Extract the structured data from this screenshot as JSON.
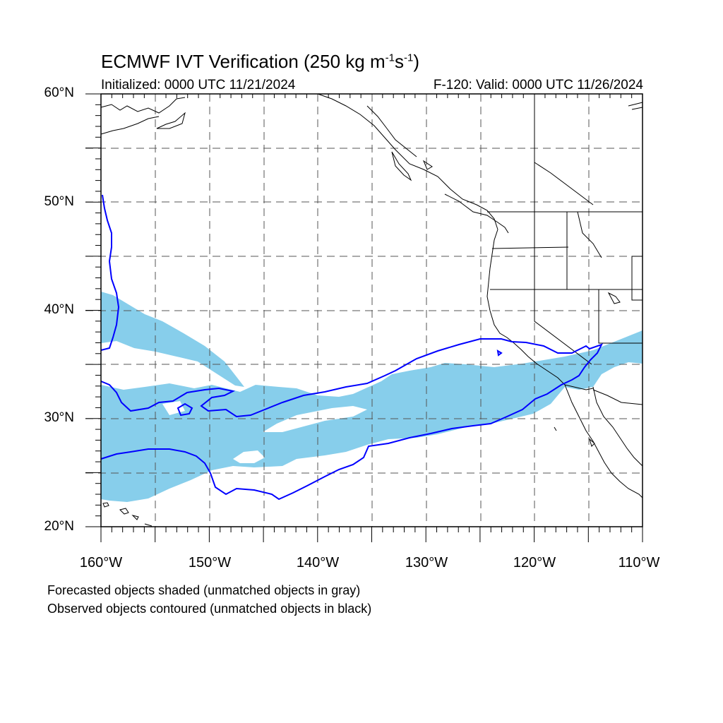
{
  "title": {
    "main": "ECMWF IVT Verification (250 kg m",
    "exp1": "-1",
    "mid": "s",
    "exp2": "-1",
    "end": ")"
  },
  "subtitle": {
    "initialized": "Initialized: 0000 UTC 11/21/2024",
    "valid": "F-120: Valid: 0000 UTC 11/26/2024"
  },
  "axes": {
    "lat_labels": [
      "60°N",
      "50°N",
      "40°N",
      "30°N",
      "20°N"
    ],
    "lon_labels": [
      "160°W",
      "150°W",
      "140°W",
      "130°W",
      "120°W",
      "110°W"
    ],
    "lon_range": [
      -160,
      -110
    ],
    "lat_range": [
      20,
      60
    ],
    "gridlines": "dashed, every 5°"
  },
  "colors": {
    "forecast_fill": "#87ceeb",
    "observed_contour": "#0000ff",
    "coastline": "#000000"
  },
  "legend": {
    "line1": "Forecasted objects shaded (unmatched objects in gray)",
    "line2": "Observed objects contoured (unmatched objects in black)"
  }
}
